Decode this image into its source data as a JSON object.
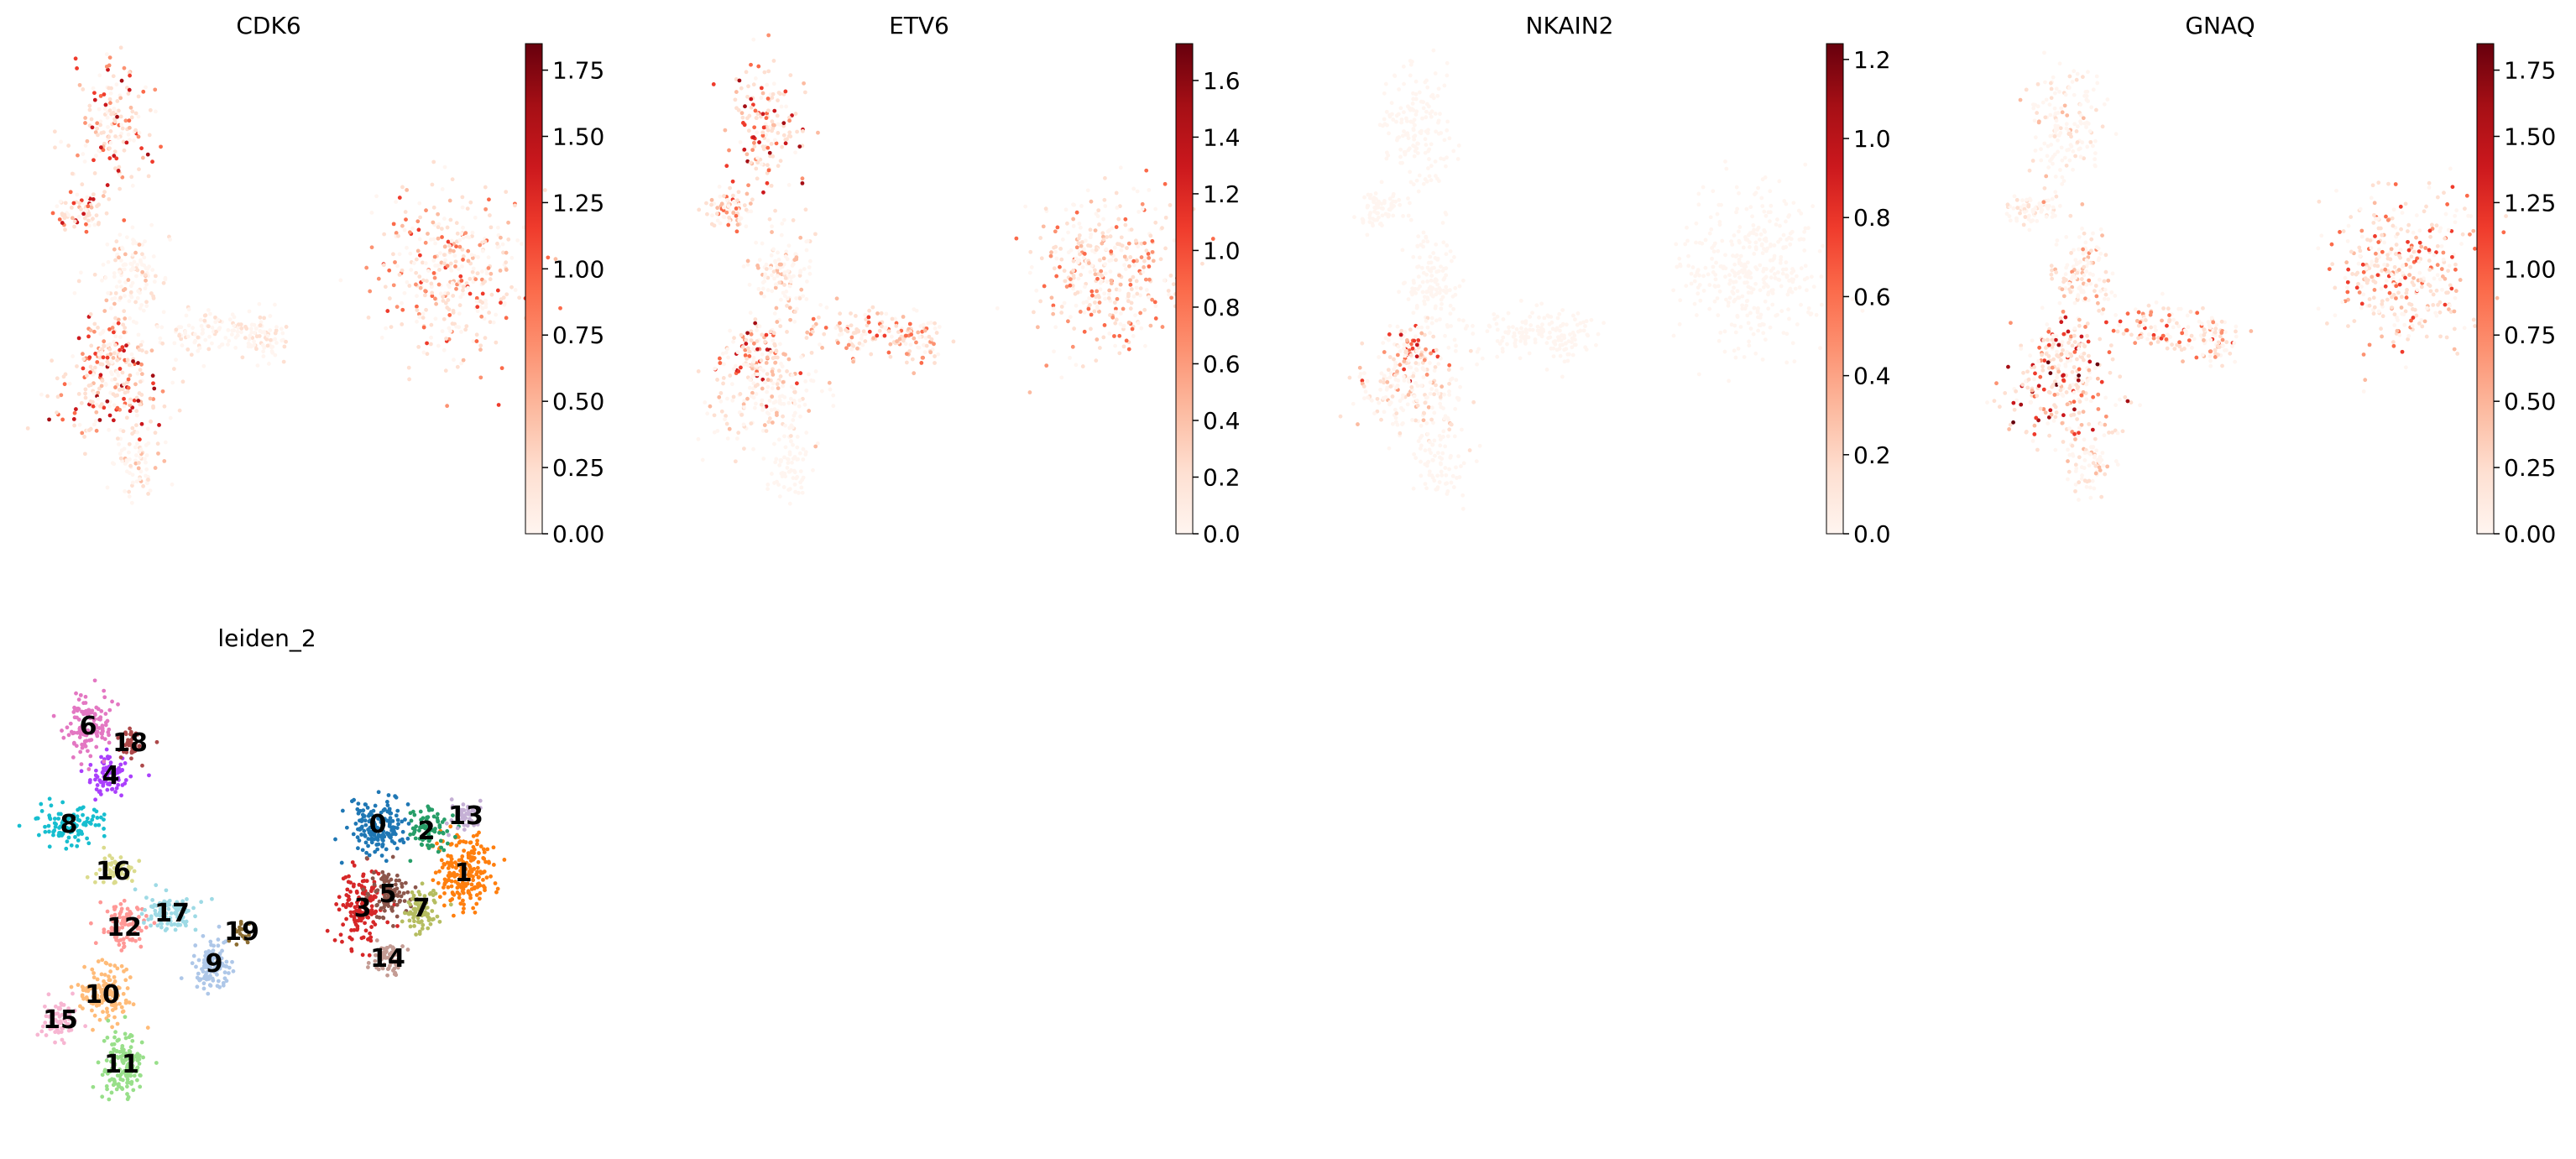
{
  "chart_data": [
    {
      "type": "scatter",
      "title": "CDK6",
      "xlabel": "",
      "ylabel": "",
      "colorbar": {
        "colormap": "Reds",
        "min": 0.0,
        "max": 1.85,
        "ticks": [
          "0.00",
          "0.25",
          "0.50",
          "0.75",
          "1.00",
          "1.25",
          "1.50",
          "1.75"
        ]
      },
      "expression_hotspots": [
        "left lobe",
        "lower-left lobe",
        "center junction",
        "right cluster"
      ]
    },
    {
      "type": "scatter",
      "title": "ETV6",
      "xlabel": "",
      "ylabel": "",
      "colorbar": {
        "colormap": "Reds",
        "min": 0.0,
        "max": 1.73,
        "ticks": [
          "0.0",
          "0.2",
          "0.4",
          "0.6",
          "0.8",
          "1.0",
          "1.2",
          "1.4",
          "1.6"
        ]
      },
      "expression_hotspots": [
        "upper lobe",
        "center junction",
        "right arm",
        "right cluster"
      ]
    },
    {
      "type": "scatter",
      "title": "NKAIN2",
      "xlabel": "",
      "ylabel": "",
      "colorbar": {
        "colormap": "Reds",
        "min": 0.0,
        "max": 1.24,
        "ticks": [
          "0.0",
          "0.2",
          "0.4",
          "0.6",
          "0.8",
          "1.0",
          "1.2"
        ]
      },
      "expression_hotspots": [
        "center junction",
        "lower-left lobe (sparse)"
      ]
    },
    {
      "type": "scatter",
      "title": "GNAQ",
      "xlabel": "",
      "ylabel": "",
      "colorbar": {
        "colormap": "Reds",
        "min": 0.0,
        "max": 1.85,
        "ticks": [
          "0.00",
          "0.25",
          "0.50",
          "0.75",
          "1.00",
          "1.25",
          "1.50",
          "1.75"
        ]
      },
      "expression_hotspots": [
        "lower-left lobe",
        "center junction",
        "right arm",
        "right cluster"
      ]
    },
    {
      "type": "scatter",
      "title": "leiden_2",
      "xlabel": "",
      "ylabel": "",
      "clusters": [
        {
          "label": "0",
          "color": "#1f77b4"
        },
        {
          "label": "1",
          "color": "#ff7f0e"
        },
        {
          "label": "2",
          "color": "#279e68"
        },
        {
          "label": "3",
          "color": "#d62728"
        },
        {
          "label": "4",
          "color": "#aa40fc"
        },
        {
          "label": "5",
          "color": "#8c564b"
        },
        {
          "label": "6",
          "color": "#e377c2"
        },
        {
          "label": "7",
          "color": "#b5bd61"
        },
        {
          "label": "8",
          "color": "#17becf"
        },
        {
          "label": "9",
          "color": "#aec7e8"
        },
        {
          "label": "10",
          "color": "#ffbb78"
        },
        {
          "label": "11",
          "color": "#98df8a"
        },
        {
          "label": "12",
          "color": "#ff9896"
        },
        {
          "label": "13",
          "color": "#c5b0d5"
        },
        {
          "label": "14",
          "color": "#c49c94"
        },
        {
          "label": "15",
          "color": "#f7b6d2"
        },
        {
          "label": "16",
          "color": "#dbdb8d"
        },
        {
          "label": "17",
          "color": "#9edae5"
        },
        {
          "label": "18",
          "color": "#ad494a"
        },
        {
          "label": "19",
          "color": "#8c6d31"
        }
      ]
    }
  ]
}
